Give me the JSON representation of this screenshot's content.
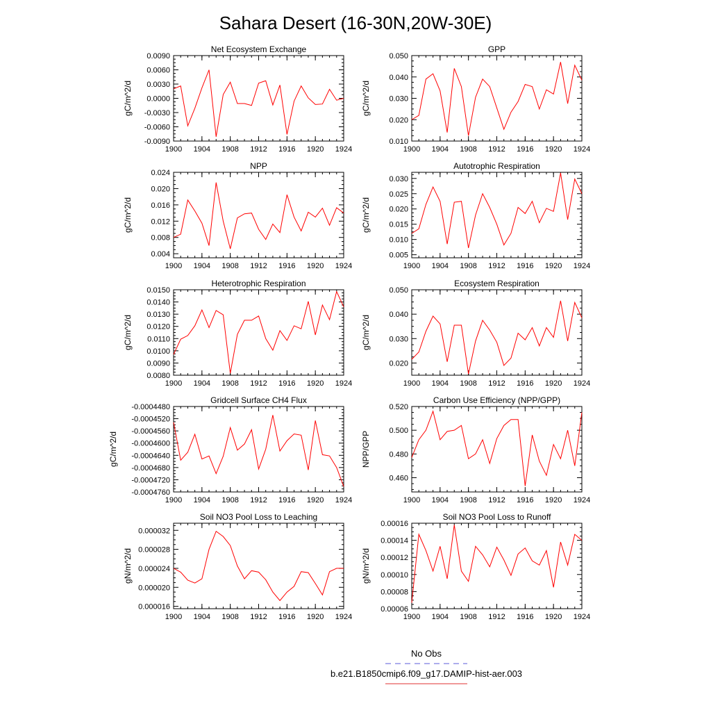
{
  "figure": {
    "title": "Sahara Desert (16-30N,20W-30E)",
    "legend": {
      "entries": [
        {
          "label": "No Obs",
          "color": "#5a5ad8",
          "style": "dashed"
        },
        {
          "label": "b.e21.B1850cmip6.f09_g17.DAMIP-hist-aer.003",
          "color": "#e03030",
          "style": "solid"
        }
      ]
    },
    "line_color": "#ff0000"
  },
  "chart_data": [
    {
      "type": "line",
      "title": "Net Ecosystem Exchange",
      "ylabel": "gC/m^2/d",
      "xlim": [
        1900,
        1924
      ],
      "xticks": [
        "1900",
        "1904",
        "1908",
        "1912",
        "1916",
        "1920",
        "1924"
      ],
      "ylim": [
        -0.009,
        0.009
      ],
      "yticks": [
        "-0.0090",
        "-0.0060",
        "-0.0030",
        "0.0000",
        "0.0030",
        "0.0060",
        "0.0090"
      ],
      "x": [
        1900,
        1901,
        1902,
        1903,
        1904,
        1905,
        1906,
        1907,
        1908,
        1909,
        1910,
        1911,
        1912,
        1913,
        1914,
        1915,
        1916,
        1917,
        1918,
        1919,
        1920,
        1921,
        1922,
        1923,
        1924
      ],
      "values": [
        0.002,
        0.0026,
        -0.0058,
        -0.0021,
        0.0022,
        0.006,
        -0.0081,
        0.0008,
        0.0034,
        -0.0011,
        -0.0011,
        -0.0015,
        0.0032,
        0.0037,
        -0.0014,
        0.0028,
        -0.0076,
        -0.0006,
        0.0026,
        0.0001,
        -0.0013,
        -0.0012,
        0.0019,
        -0.0004,
        0.0
      ]
    },
    {
      "type": "line",
      "title": "GPP",
      "ylabel": "gC/m^2/d",
      "xlim": [
        1900,
        1924
      ],
      "xticks": [
        "1900",
        "1904",
        "1908",
        "1912",
        "1916",
        "1920",
        "1924"
      ],
      "ylim": [
        0.01,
        0.05
      ],
      "yticks": [
        "0.010",
        "0.020",
        "0.030",
        "0.040",
        "0.050"
      ],
      "x": [
        1900,
        1901,
        1902,
        1903,
        1904,
        1905,
        1906,
        1907,
        1908,
        1909,
        1910,
        1911,
        1912,
        1913,
        1914,
        1915,
        1916,
        1917,
        1918,
        1919,
        1920,
        1921,
        1922,
        1923,
        1924
      ],
      "values": [
        0.02,
        0.022,
        0.039,
        0.0415,
        0.0335,
        0.014,
        0.044,
        0.0355,
        0.0125,
        0.0305,
        0.039,
        0.0355,
        0.0255,
        0.0155,
        0.0235,
        0.0285,
        0.0365,
        0.0355,
        0.025,
        0.034,
        0.032,
        0.047,
        0.0275,
        0.0455,
        0.0385
      ]
    },
    {
      "type": "line",
      "title": "NPP",
      "ylabel": "gC/m^2/d",
      "xlim": [
        1900,
        1924
      ],
      "xticks": [
        "1900",
        "1904",
        "1908",
        "1912",
        "1916",
        "1920",
        "1924"
      ],
      "ylim": [
        0.003,
        0.024
      ],
      "yticks": [
        "0.004",
        "0.008",
        "0.012",
        "0.016",
        "0.020",
        "0.024"
      ],
      "x": [
        1900,
        1901,
        1902,
        1903,
        1904,
        1905,
        1906,
        1907,
        1908,
        1909,
        1910,
        1911,
        1912,
        1913,
        1914,
        1915,
        1916,
        1917,
        1918,
        1919,
        1920,
        1921,
        1922,
        1923,
        1924
      ],
      "values": [
        0.008,
        0.0088,
        0.0172,
        0.0145,
        0.0115,
        0.006,
        0.0215,
        0.012,
        0.0052,
        0.0128,
        0.0138,
        0.014,
        0.01,
        0.0075,
        0.0113,
        0.0092,
        0.0185,
        0.013,
        0.0096,
        0.0142,
        0.013,
        0.0152,
        0.011,
        0.0153,
        0.014
      ]
    },
    {
      "type": "line",
      "title": "Autotrophic Respiration",
      "ylabel": "gC/m^2/d",
      "xlim": [
        1900,
        1924
      ],
      "xticks": [
        "1900",
        "1904",
        "1908",
        "1912",
        "1916",
        "1920",
        "1924"
      ],
      "ylim": [
        0.004,
        0.032
      ],
      "yticks": [
        "0.005",
        "0.010",
        "0.015",
        "0.020",
        "0.025",
        "0.030"
      ],
      "x": [
        1900,
        1901,
        1902,
        1903,
        1904,
        1905,
        1906,
        1907,
        1908,
        1909,
        1910,
        1911,
        1912,
        1913,
        1914,
        1915,
        1916,
        1917,
        1918,
        1919,
        1920,
        1921,
        1922,
        1923,
        1924
      ],
      "values": [
        0.012,
        0.0135,
        0.0215,
        0.0272,
        0.0225,
        0.0085,
        0.0222,
        0.0225,
        0.0072,
        0.018,
        0.025,
        0.0205,
        0.015,
        0.0082,
        0.012,
        0.0205,
        0.0185,
        0.0225,
        0.0155,
        0.0202,
        0.0192,
        0.0318,
        0.0165,
        0.0298,
        0.025
      ]
    },
    {
      "type": "line",
      "title": "Heterotrophic Respiration",
      "ylabel": "gC/m^2/d",
      "xlim": [
        1900,
        1924
      ],
      "xticks": [
        "1900",
        "1904",
        "1908",
        "1912",
        "1916",
        "1920",
        "1924"
      ],
      "ylim": [
        0.008,
        0.015
      ],
      "yticks": [
        "0.0080",
        "0.0090",
        "0.0100",
        "0.0110",
        "0.0120",
        "0.0130",
        "0.0140",
        "0.0150"
      ],
      "x": [
        1900,
        1901,
        1902,
        1903,
        1904,
        1905,
        1906,
        1907,
        1908,
        1909,
        1910,
        1911,
        1912,
        1913,
        1914,
        1915,
        1916,
        1917,
        1918,
        1919,
        1920,
        1921,
        1922,
        1923,
        1924
      ],
      "values": [
        0.0097,
        0.01095,
        0.01125,
        0.01205,
        0.01335,
        0.0119,
        0.0133,
        0.01295,
        0.00815,
        0.01135,
        0.0125,
        0.0125,
        0.01285,
        0.011,
        0.01005,
        0.01165,
        0.01085,
        0.01205,
        0.0118,
        0.01405,
        0.0113,
        0.01375,
        0.01255,
        0.01485,
        0.0136
      ]
    },
    {
      "type": "line",
      "title": "Ecosystem Respiration",
      "ylabel": "gC/m^2/d",
      "xlim": [
        1900,
        1924
      ],
      "xticks": [
        "1900",
        "1904",
        "1908",
        "1912",
        "1916",
        "1920",
        "1924"
      ],
      "ylim": [
        0.015,
        0.05
      ],
      "yticks": [
        "0.020",
        "0.030",
        "0.040",
        "0.050"
      ],
      "x": [
        1900,
        1901,
        1902,
        1903,
        1904,
        1905,
        1906,
        1907,
        1908,
        1909,
        1910,
        1911,
        1912,
        1913,
        1914,
        1915,
        1916,
        1917,
        1918,
        1919,
        1920,
        1921,
        1922,
        1923,
        1924
      ],
      "values": [
        0.0215,
        0.0245,
        0.033,
        0.0392,
        0.036,
        0.0205,
        0.0355,
        0.0355,
        0.0155,
        0.029,
        0.0375,
        0.0335,
        0.0285,
        0.019,
        0.022,
        0.0322,
        0.0295,
        0.0345,
        0.027,
        0.0345,
        0.0305,
        0.0455,
        0.029,
        0.0448,
        0.0385
      ]
    },
    {
      "type": "line",
      "title": "Gridcell Surface CH4 Flux",
      "ylabel": "gC/m^2/d",
      "xlim": [
        1900,
        1924
      ],
      "xticks": [
        "1900",
        "1904",
        "1908",
        "1912",
        "1916",
        "1920",
        "1924"
      ],
      "ylim": [
        -0.000476,
        -0.000448
      ],
      "yticks": [
        "-0.0004760",
        "-0.0004720",
        "-0.0004680",
        "-0.0004640",
        "-0.0004600",
        "-0.0004560",
        "-0.0004520",
        "-0.0004480"
      ],
      "x": [
        1900,
        1901,
        1902,
        1903,
        1904,
        1905,
        1906,
        1907,
        1908,
        1909,
        1910,
        1911,
        1912,
        1913,
        1914,
        1915,
        1916,
        1917,
        1918,
        1919,
        1920,
        1921,
        1922,
        1923,
        1924
      ],
      "values": [
        -0.0004532,
        -0.0004656,
        -0.000463,
        -0.0004571,
        -0.0004652,
        -0.0004642,
        -0.00047,
        -0.0004643,
        -0.0004549,
        -0.0004623,
        -0.0004603,
        -0.0004556,
        -0.0004685,
        -0.000462,
        -0.0004508,
        -0.0004626,
        -0.0004592,
        -0.000457,
        -0.0004574,
        -0.0004688,
        -0.0004526,
        -0.0004638,
        -0.0004642,
        -0.000468,
        -0.0004742
      ]
    },
    {
      "type": "line",
      "title": "Carbon Use Efficiency (NPP/GPP)",
      "ylabel": "NPP/GPP",
      "xlim": [
        1900,
        1924
      ],
      "xticks": [
        "1900",
        "1904",
        "1908",
        "1912",
        "1916",
        "1920",
        "1924"
      ],
      "ylim": [
        0.448,
        0.52
      ],
      "yticks": [
        "0.460",
        "0.480",
        "0.500",
        "0.520"
      ],
      "x": [
        1900,
        1901,
        1902,
        1903,
        1904,
        1905,
        1906,
        1907,
        1908,
        1909,
        1910,
        1911,
        1912,
        1913,
        1914,
        1915,
        1916,
        1917,
        1918,
        1919,
        1920,
        1921,
        1922,
        1923,
        1924
      ],
      "values": [
        0.477,
        0.492,
        0.5,
        0.516,
        0.492,
        0.499,
        0.5,
        0.504,
        0.476,
        0.48,
        0.492,
        0.472,
        0.493,
        0.504,
        0.509,
        0.509,
        0.453,
        0.496,
        0.474,
        0.462,
        0.488,
        0.476,
        0.5,
        0.47,
        0.515
      ]
    },
    {
      "type": "line",
      "title": "Soil NO3 Pool Loss to Leaching",
      "ylabel": "gN/m^2/d",
      "xlim": [
        1900,
        1924
      ],
      "xticks": [
        "1900",
        "1904",
        "1908",
        "1912",
        "1916",
        "1920",
        "1924"
      ],
      "ylim": [
        1.55e-05,
        3.35e-05
      ],
      "yticks": [
        "0.000016",
        "0.000020",
        "0.000024",
        "0.000028",
        "0.000032"
      ],
      "x": [
        1900,
        1901,
        1902,
        1903,
        1904,
        1905,
        1906,
        1907,
        1908,
        1909,
        1910,
        1911,
        1912,
        1913,
        1914,
        1915,
        1916,
        1917,
        1918,
        1919,
        1920,
        1921,
        1922,
        1923,
        1924
      ],
      "values": [
        2.4e-05,
        2.32e-05,
        2.15e-05,
        2.09e-05,
        2.18e-05,
        2.8e-05,
        3.18e-05,
        3.07e-05,
        2.88e-05,
        2.45e-05,
        2.18e-05,
        2.35e-05,
        2.32e-05,
        2.16e-05,
        1.9e-05,
        1.72e-05,
        1.9e-05,
        2.02e-05,
        2.33e-05,
        2.31e-05,
        2.08e-05,
        1.84e-05,
        2.33e-05,
        2.4e-05,
        2.4e-05
      ]
    },
    {
      "type": "line",
      "title": "Soil NO3 Pool Loss to Runoff",
      "ylabel": "gN/m^2/d",
      "xlim": [
        1900,
        1924
      ],
      "xticks": [
        "1900",
        "1904",
        "1908",
        "1912",
        "1916",
        "1920",
        "1924"
      ],
      "ylim": [
        6e-05,
        0.00016
      ],
      "yticks": [
        "0.00006",
        "0.00008",
        "0.00010",
        "0.00012",
        "0.00014",
        "0.00016"
      ],
      "x": [
        1900,
        1901,
        1902,
        1903,
        1904,
        1905,
        1906,
        1907,
        1908,
        1909,
        1910,
        1911,
        1912,
        1913,
        1914,
        1915,
        1916,
        1917,
        1918,
        1919,
        1920,
        1921,
        1922,
        1923,
        1924
      ],
      "values": [
        6.7e-05,
        0.000147,
        0.000128,
        0.000104,
        0.000133,
        9.5e-05,
        0.000158,
        0.000104,
        9.2e-05,
        0.000133,
        0.000123,
        0.000109,
        0.000132,
        0.000117,
        9.9e-05,
        0.000124,
        0.000131,
        0.000116,
        0.000111,
        0.000128,
        8.5e-05,
        0.000138,
        0.000111,
        0.000147,
        0.00014
      ]
    }
  ]
}
